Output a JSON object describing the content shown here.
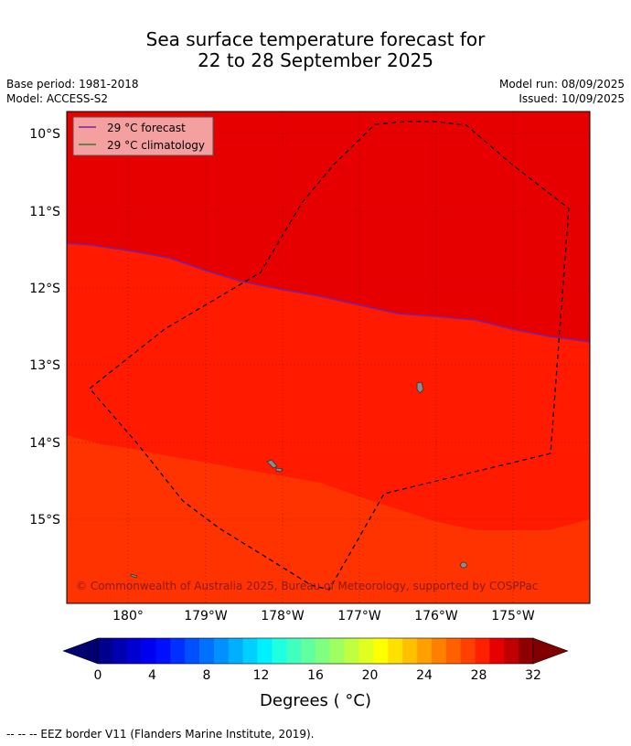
{
  "title": {
    "line1": "Sea surface temperature forecast for",
    "line2": "22 to 28 September 2025"
  },
  "meta": {
    "base_period": "Base period: 1981-2018",
    "model": "Model: ACCESS-S2",
    "model_run": "Model run: 08/09/2025",
    "issued": "Issued: 10/09/2025"
  },
  "map": {
    "lat_labels": [
      "10°S",
      "11°S",
      "12°S",
      "13°S",
      "14°S",
      "15°S"
    ],
    "lon_labels": [
      "180°",
      "179°W",
      "178°W",
      "177°W",
      "176°W",
      "175°W"
    ],
    "legend": [
      {
        "label": "29 °C  forecast",
        "color": "#7b1fa2"
      },
      {
        "label": "29 °C  climatology",
        "color": "#2e7d32"
      }
    ],
    "copyright": "© Commonwealth of Australia 2025, Bureau of Meteorology, supported by COSPPac",
    "colors": {
      "zone_high": "#e60000",
      "zone_mid": "#ff1a00",
      "zone_low": "#ff3300"
    }
  },
  "colorbar": {
    "tick_labels": [
      "0",
      "4",
      "8",
      "12",
      "16",
      "20",
      "24",
      "28",
      "32"
    ],
    "label": "Degrees ( °C)",
    "colors": [
      "#00008f",
      "#0000b0",
      "#0000d0",
      "#0000f0",
      "#0010ff",
      "#0030ff",
      "#0050ff",
      "#0070ff",
      "#0090ff",
      "#00b0ff",
      "#00d0ff",
      "#00f0ff",
      "#20ffdf",
      "#40ffbf",
      "#60ff9f",
      "#80ff80",
      "#a0ff60",
      "#c0ff40",
      "#e0ff20",
      "#ffff00",
      "#ffe000",
      "#ffc000",
      "#ffa000",
      "#ff8000",
      "#ff6000",
      "#ff4000",
      "#ff2000",
      "#e60000",
      "#c00000",
      "#900000"
    ],
    "under_color": "#00006f",
    "over_color": "#800000"
  },
  "footer": "-- -- -- EEZ border V11 (Flanders Marine Institute, 2019)."
}
